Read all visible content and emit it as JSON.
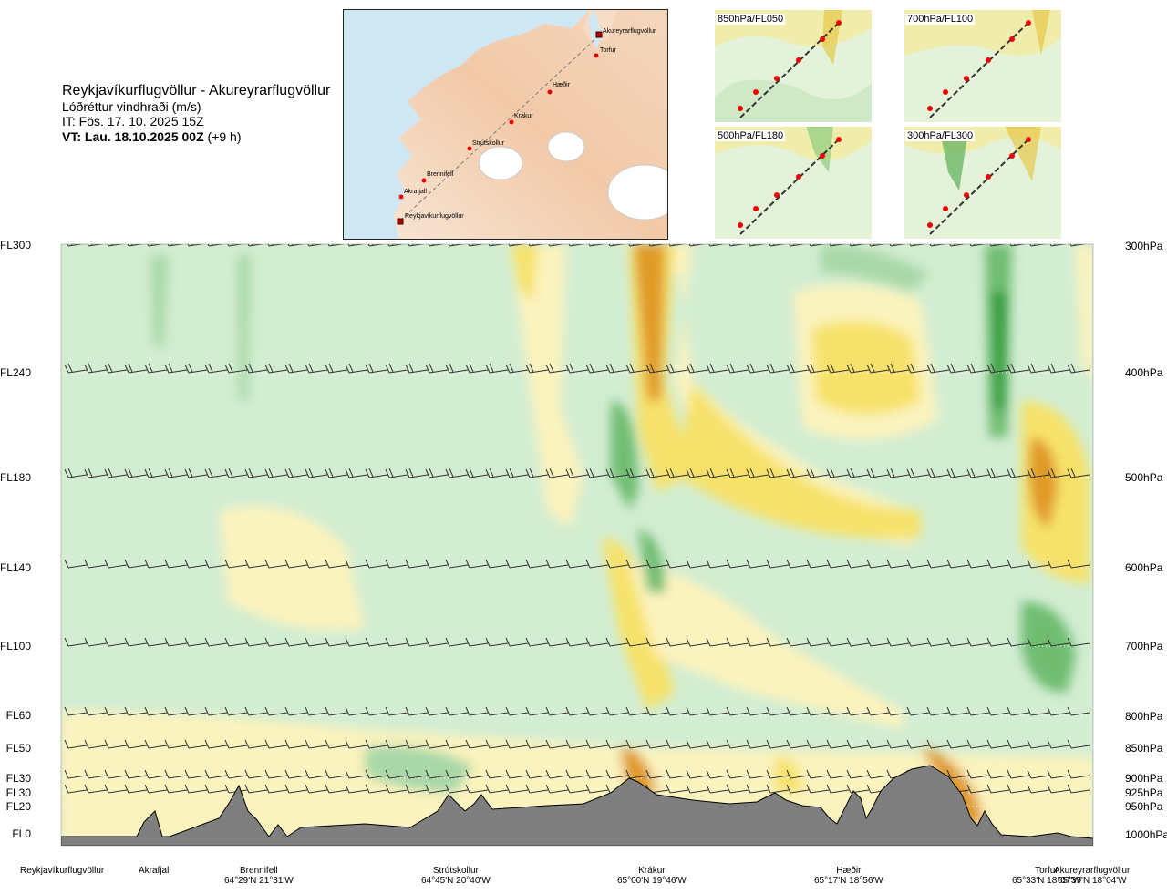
{
  "header": {
    "route_title": "Reykjavíkurflugvöllur - Akureyrarflugvöllur",
    "subtitle": "Lóðréttur vindhraði (m/s)",
    "issue_time": "IT: Fös. 17. 10. 2025 15Z",
    "valid_time_label": "VT: Lau. 18.10.2025 00Z",
    "valid_time_offset": "(+9 h)"
  },
  "route_map": {
    "waypoints": [
      {
        "name": "Akureyrarflugvöllur",
        "type": "airport"
      },
      {
        "name": "Torfur",
        "type": "point"
      },
      {
        "name": "Hæðir",
        "type": "point"
      },
      {
        "name": "Krákur",
        "type": "point"
      },
      {
        "name": "Strútskollur",
        "type": "point"
      },
      {
        "name": "Brennifell",
        "type": "point"
      },
      {
        "name": "Akrafjall",
        "type": "point"
      },
      {
        "name": "Reykjavíkurflugvöllur",
        "type": "airport"
      }
    ]
  },
  "thumbnails": [
    {
      "label": "850hPa/FL050"
    },
    {
      "label": "700hPa/FL100"
    },
    {
      "label": "500hPa/FL180"
    },
    {
      "label": "300hPa/FL300"
    }
  ],
  "chart_data": {
    "type": "heatmap",
    "title": "Lóðréttur vindhraði (m/s)",
    "left_axis": {
      "ticks": [
        {
          "label": "FL300",
          "hpa": 300
        },
        {
          "label": "FL240",
          "hpa": 400
        },
        {
          "label": "FL180",
          "hpa": 500
        },
        {
          "label": "FL140",
          "hpa": 600
        },
        {
          "label": "FL100",
          "hpa": 700
        },
        {
          "label": "FL60",
          "hpa": 800
        },
        {
          "label": "FL50",
          "hpa": 850
        },
        {
          "label": "FL30",
          "hpa": 900
        },
        {
          "label": "FL30",
          "hpa": 925
        },
        {
          "label": "FL20",
          "hpa": 950
        },
        {
          "label": "FL0",
          "hpa": 1000
        }
      ]
    },
    "right_axis": {
      "ticks": [
        "300hPa",
        "400hPa",
        "500hPa",
        "600hPa",
        "700hPa",
        "800hPa",
        "850hPa",
        "900hPa",
        "925hPa",
        "950hPa",
        "1000hPa"
      ]
    },
    "bottom_axis": {
      "places": [
        {
          "name": "Reykjavíkurflugvöllur",
          "coord": ""
        },
        {
          "name": "Akrafjall",
          "coord": ""
        },
        {
          "name": "Brennifell",
          "coord": "64°29'N 21°31'W"
        },
        {
          "name": "Strútskollur",
          "coord": "64°45'N 20°40'W"
        },
        {
          "name": "Krákur",
          "coord": "65°00'N 19°46'W"
        },
        {
          "name": "Hæðir",
          "coord": "65°17'N 18°56'W"
        },
        {
          "name": "Torfur",
          "coord": "65°33'N 18°07'W"
        },
        {
          "name": "Akureyrarflugvöllur",
          "coord": "65°39'N 18°04'W"
        }
      ]
    },
    "legend_colors": {
      "sink_weak": "#d2edd2",
      "sink_mod": "#a9d8a8",
      "sink_strong": "#6fbd72",
      "sink_very_strong": "#2f9b3a",
      "lift_weak": "#fbf3bd",
      "lift_mod": "#f6e26a",
      "lift_strong": "#ecc52a",
      "lift_very_strong": "#e09a28",
      "terrain": "#7f7f7f"
    },
    "grid": "dotted lines at pressure levels"
  }
}
